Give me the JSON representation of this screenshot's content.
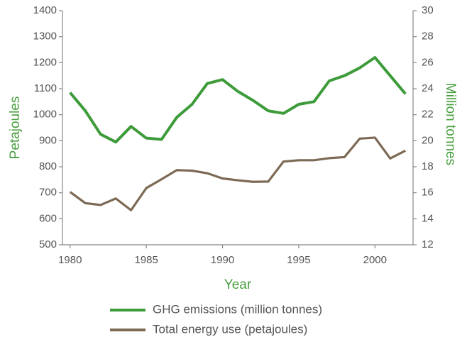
{
  "chart_data": {
    "type": "line",
    "xlabel": "Year",
    "ylabel": "Petajoules",
    "y2label": "Million tonnes",
    "x": [
      1980,
      1981,
      1982,
      1983,
      1984,
      1985,
      1986,
      1987,
      1988,
      1989,
      1990,
      1991,
      1992,
      1993,
      1994,
      1995,
      1996,
      1997,
      1998,
      1999,
      2000,
      2001,
      2002
    ],
    "series": [
      {
        "name": "GHG emissions (million tonnes)",
        "color": "#3d9b3a",
        "axis": "y2",
        "values": [
          23.7,
          22.3,
          20.5,
          19.9,
          21.1,
          20.2,
          20.1,
          21.8,
          22.8,
          24.4,
          24.7,
          23.8,
          23.1,
          22.3,
          22.1,
          22.8,
          23.0,
          24.6,
          25.0,
          25.6,
          26.4,
          25.0,
          23.6
        ]
      },
      {
        "name": "Total energy use (petajoules)",
        "color": "#7d6a55",
        "axis": "y",
        "values": [
          703,
          660,
          653,
          678,
          633,
          718,
          752,
          787,
          785,
          775,
          755,
          748,
          742,
          743,
          820,
          825,
          825,
          833,
          837,
          908,
          912,
          832,
          862
        ]
      }
    ],
    "xlim": [
      1979.5,
      2002.5
    ],
    "xticks": [
      1980,
      1985,
      1990,
      1995,
      2000
    ],
    "ylim": [
      500,
      1400
    ],
    "yticks": [
      500,
      600,
      700,
      800,
      900,
      1000,
      1100,
      1200,
      1300,
      1400
    ],
    "y2lim": [
      12,
      30
    ],
    "y2ticks": [
      12,
      14,
      16,
      18,
      20,
      22,
      24,
      26,
      28,
      30
    ],
    "legend": "bottom"
  }
}
